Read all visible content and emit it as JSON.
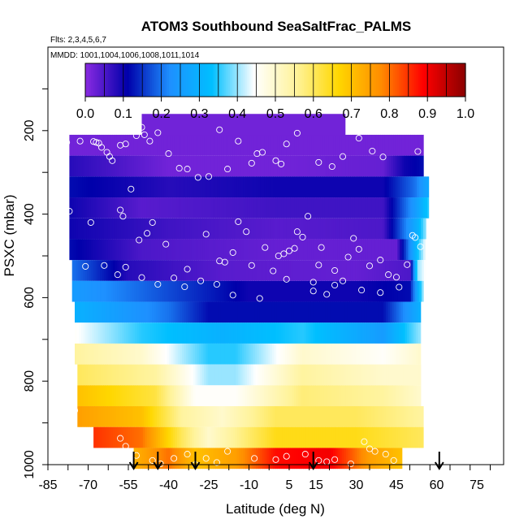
{
  "chart_data": {
    "type": "heatmap",
    "title": "ATOM3 Southbound SeaSaltFrac_PALMS",
    "subtitle_flights": "Flts: 2,3,4,5,6,7",
    "subtitle_dates": "MMDD: 1001,1004,1006,1008,1011,1014",
    "xlabel": "Latitude (deg N)",
    "ylabel": "PSXC (mbar)",
    "xlim": [
      -85,
      85
    ],
    "ylim": [
      1000,
      0
    ],
    "x_ticks": [
      -85,
      -70,
      -55,
      -40,
      -25,
      -10,
      5,
      15,
      30,
      45,
      60,
      75
    ],
    "y_ticks": [
      200,
      400,
      600,
      800,
      1000
    ],
    "colorbar": {
      "range": [
        0.0,
        1.0
      ],
      "ticks": [
        "0.0",
        "0.1",
        "0.2",
        "0.3",
        "0.4",
        "0.5",
        "0.6",
        "0.7",
        "0.8",
        "0.9",
        "1.0"
      ],
      "colors": [
        "#8a2be2",
        "#0000aa",
        "#1e90ff",
        "#00bfff",
        "#ffffff",
        "#fff39a",
        "#ffd700",
        "#ff8c00",
        "#ff0000",
        "#8b0000"
      ]
    },
    "pressure_bands": [
      {
        "p": [
          210,
          260
        ],
        "lat": [
          -77,
          55
        ],
        "values": [
          [
            -77,
            0.02
          ],
          [
            55,
            0.02
          ]
        ]
      },
      {
        "p": [
          260,
          310
        ],
        "lat": [
          -77,
          55
        ],
        "values": [
          [
            -77,
            0.08
          ],
          [
            -40,
            0.02
          ],
          [
            0,
            0.02
          ],
          [
            40,
            0.03
          ],
          [
            48,
            0.1
          ],
          [
            55,
            0.12
          ]
        ]
      },
      {
        "p": [
          310,
          360
        ],
        "lat": [
          -77,
          57
        ],
        "values": [
          [
            -77,
            0.12
          ],
          [
            -40,
            0.08
          ],
          [
            0,
            0.1
          ],
          [
            40,
            0.1
          ],
          [
            52,
            0.2
          ],
          [
            57,
            0.28
          ]
        ]
      },
      {
        "p": [
          360,
          410
        ],
        "lat": [
          -77,
          57
        ],
        "values": [
          [
            -77,
            0.1
          ],
          [
            -50,
            0.04
          ],
          [
            0,
            0.06
          ],
          [
            40,
            0.06
          ],
          [
            52,
            0.25
          ],
          [
            57,
            0.35
          ]
        ]
      },
      {
        "p": [
          410,
          460
        ],
        "lat": [
          -77,
          56
        ],
        "values": [
          [
            -77,
            0.1
          ],
          [
            -40,
            0.06
          ],
          [
            0,
            0.04
          ],
          [
            40,
            0.05
          ],
          [
            53,
            0.3
          ],
          [
            56,
            0.4
          ]
        ]
      },
      {
        "p": [
          460,
          510
        ],
        "lat": [
          -77,
          56
        ],
        "values": [
          [
            -77,
            0.12
          ],
          [
            -50,
            0.05
          ],
          [
            0,
            0.03
          ],
          [
            45,
            0.03
          ],
          [
            52,
            0.3
          ],
          [
            56,
            0.45
          ]
        ]
      },
      {
        "p": [
          510,
          560
        ],
        "lat": [
          -76,
          56
        ],
        "values": [
          [
            -76,
            0.2
          ],
          [
            -55,
            0.08
          ],
          [
            -20,
            0.04
          ],
          [
            30,
            0.03
          ],
          [
            50,
            0.05
          ],
          [
            53,
            0.4
          ],
          [
            56,
            0.45
          ]
        ]
      },
      {
        "p": [
          560,
          610
        ],
        "lat": [
          -76,
          55
        ],
        "values": [
          [
            -76,
            0.25
          ],
          [
            -45,
            0.18
          ],
          [
            -10,
            0.1
          ],
          [
            30,
            0.1
          ],
          [
            50,
            0.12
          ],
          [
            55,
            0.4
          ]
        ]
      },
      {
        "p": [
          610,
          660
        ],
        "lat": [
          -75,
          54
        ],
        "values": [
          [
            -75,
            0.3
          ],
          [
            -40,
            0.2
          ],
          [
            -25,
            0.12
          ],
          [
            0,
            0.12
          ],
          [
            40,
            0.12
          ],
          [
            54,
            0.3
          ]
        ]
      },
      {
        "p": [
          660,
          710
        ],
        "lat": [
          -75,
          54
        ],
        "values": [
          [
            -75,
            0.45
          ],
          [
            -50,
            0.35
          ],
          [
            -20,
            0.3
          ],
          [
            10,
            0.35
          ],
          [
            40,
            0.25
          ],
          [
            54,
            0.4
          ]
        ]
      },
      {
        "p": [
          710,
          760
        ],
        "lat": [
          -75,
          54
        ],
        "values": [
          [
            -75,
            0.55
          ],
          [
            -50,
            0.5
          ],
          [
            -25,
            0.35
          ],
          [
            -15,
            0.35
          ],
          [
            10,
            0.5
          ],
          [
            40,
            0.45
          ],
          [
            54,
            0.5
          ]
        ]
      },
      {
        "p": [
          760,
          810
        ],
        "lat": [
          -74,
          54
        ],
        "values": [
          [
            -74,
            0.6
          ],
          [
            -45,
            0.55
          ],
          [
            -25,
            0.4
          ],
          [
            -15,
            0.4
          ],
          [
            10,
            0.55
          ],
          [
            40,
            0.5
          ],
          [
            54,
            0.5
          ]
        ]
      },
      {
        "p": [
          810,
          860
        ],
        "lat": [
          -74,
          54
        ],
        "values": [
          [
            -74,
            0.7
          ],
          [
            -45,
            0.62
          ],
          [
            -30,
            0.45
          ],
          [
            -15,
            0.45
          ],
          [
            10,
            0.58
          ],
          [
            40,
            0.55
          ],
          [
            54,
            0.5
          ]
        ]
      },
      {
        "p": [
          860,
          910
        ],
        "lat": [
          -74,
          55
        ],
        "values": [
          [
            -74,
            0.75
          ],
          [
            -50,
            0.7
          ],
          [
            -35,
            0.55
          ],
          [
            -20,
            0.5
          ],
          [
            0,
            0.6
          ],
          [
            30,
            0.6
          ],
          [
            55,
            0.55
          ]
        ]
      },
      {
        "p": [
          910,
          960
        ],
        "lat": [
          -68,
          55
        ],
        "values": [
          [
            -68,
            0.85
          ],
          [
            -50,
            0.8
          ],
          [
            -35,
            0.6
          ],
          [
            -25,
            0.5
          ],
          [
            0,
            0.65
          ],
          [
            30,
            0.65
          ],
          [
            55,
            0.6
          ]
        ]
      },
      {
        "p": [
          960,
          1010
        ],
        "lat": [
          -53,
          47
        ],
        "values": [
          [
            -53,
            0.72
          ],
          [
            -40,
            0.8
          ],
          [
            -30,
            0.7
          ],
          [
            -15,
            0.75
          ],
          [
            0,
            0.88
          ],
          [
            20,
            0.9
          ],
          [
            35,
            0.75
          ],
          [
            47,
            0.7
          ]
        ]
      }
    ],
    "measurement_points": [
      [
        -78,
        228
      ],
      [
        -73,
        225
      ],
      [
        -68,
        226
      ],
      [
        -67,
        228
      ],
      [
        -66,
        230
      ],
      [
        -65,
        240
      ],
      [
        -63,
        252
      ],
      [
        -62,
        262
      ],
      [
        -61,
        272
      ],
      [
        -58,
        235
      ],
      [
        -56,
        232
      ],
      [
        -52,
        212
      ],
      [
        -50,
        192
      ],
      [
        -49,
        210
      ],
      [
        -47,
        225
      ],
      [
        -44,
        205
      ],
      [
        -40,
        255
      ],
      [
        -36,
        290
      ],
      [
        -33,
        292
      ],
      [
        -29,
        312
      ],
      [
        -25,
        310
      ],
      [
        -21,
        198
      ],
      [
        -18,
        292
      ],
      [
        -14,
        225
      ],
      [
        -9,
        278
      ],
      [
        -7,
        255
      ],
      [
        -5,
        252
      ],
      [
        0,
        272
      ],
      [
        2,
        280
      ],
      [
        4,
        232
      ],
      [
        8,
        206
      ],
      [
        16,
        276
      ],
      [
        21,
        286
      ],
      [
        25,
        262
      ],
      [
        31,
        218
      ],
      [
        36,
        249
      ],
      [
        40,
        263
      ],
      [
        53,
        250
      ],
      [
        -80,
        360
      ],
      [
        -77,
        393
      ],
      [
        -69,
        420
      ],
      [
        -58,
        390
      ],
      [
        -57,
        405
      ],
      [
        -54,
        340
      ],
      [
        -51,
        462
      ],
      [
        -48,
        446
      ],
      [
        -46,
        420
      ],
      [
        -41,
        472
      ],
      [
        -33,
        532
      ],
      [
        -26,
        448
      ],
      [
        -22,
        568
      ],
      [
        -19,
        515
      ],
      [
        -16,
        492
      ],
      [
        -14,
        418
      ],
      [
        -11,
        442
      ],
      [
        -9,
        523
      ],
      [
        -4,
        480
      ],
      [
        -1,
        536
      ],
      [
        1,
        500
      ],
      [
        3,
        495
      ],
      [
        5,
        488
      ],
      [
        7,
        482
      ],
      [
        8,
        442
      ],
      [
        10,
        455
      ],
      [
        12,
        405
      ],
      [
        14,
        563
      ],
      [
        16,
        522
      ],
      [
        17,
        480
      ],
      [
        19,
        592
      ],
      [
        22,
        570
      ],
      [
        25,
        560
      ],
      [
        27,
        503
      ],
      [
        29,
        458
      ],
      [
        31,
        484
      ],
      [
        35,
        524
      ],
      [
        39,
        588
      ],
      [
        42,
        545
      ],
      [
        45,
        551
      ],
      [
        49,
        521
      ],
      [
        52,
        456
      ],
      [
        54,
        478
      ],
      [
        -71,
        525
      ],
      [
        -64,
        523
      ],
      [
        -59,
        545
      ],
      [
        -56,
        527
      ],
      [
        -50,
        552
      ],
      [
        -44,
        568
      ],
      [
        -38,
        553
      ],
      [
        -34,
        574
      ],
      [
        -28,
        560
      ],
      [
        -21,
        512
      ],
      [
        -16,
        594
      ],
      [
        -6,
        602
      ],
      [
        4,
        556
      ],
      [
        14,
        584
      ],
      [
        22,
        535
      ],
      [
        32,
        582
      ],
      [
        39,
        510
      ],
      [
        46,
        575
      ],
      [
        51,
        451
      ],
      [
        -75,
        870
      ],
      [
        -58,
        937
      ],
      [
        -56,
        956
      ],
      [
        -52,
        978
      ],
      [
        -46,
        990
      ],
      [
        -43,
        998
      ],
      [
        -38,
        985
      ],
      [
        -33,
        975
      ],
      [
        -30,
        1000
      ],
      [
        -26,
        985
      ],
      [
        -22,
        995
      ],
      [
        -18,
        968
      ],
      [
        -8,
        985
      ],
      [
        0,
        988
      ],
      [
        4,
        980
      ],
      [
        11,
        975
      ],
      [
        16,
        990
      ],
      [
        19,
        993
      ],
      [
        22,
        988
      ],
      [
        28,
        998
      ],
      [
        33,
        945
      ],
      [
        35,
        962
      ],
      [
        37,
        968
      ],
      [
        41,
        975
      ],
      [
        44,
        990
      ],
      [
        49,
        992
      ]
    ],
    "arrows_lat": [
      -53,
      -44,
      -30,
      14,
      61
    ]
  }
}
